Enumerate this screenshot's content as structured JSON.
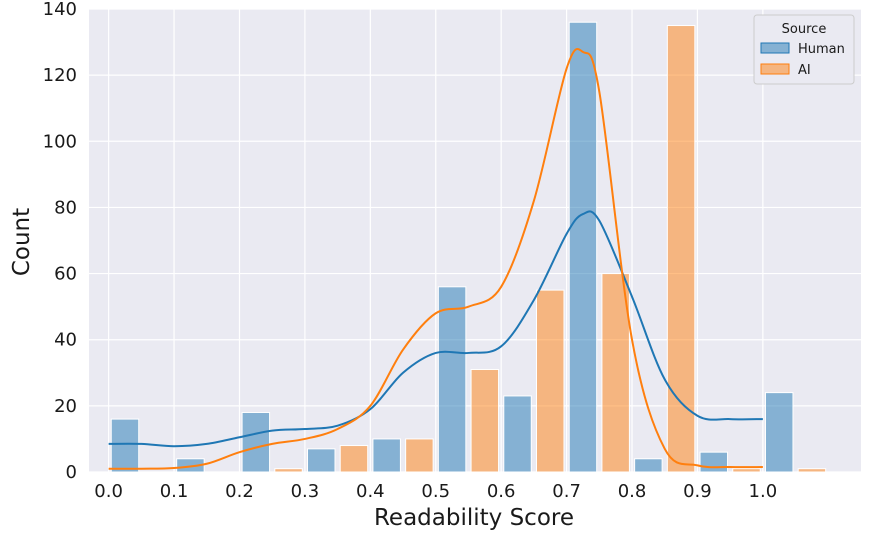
{
  "chart_data": {
    "type": "bar",
    "title": "",
    "xlabel": "Readability Score",
    "ylabel": "Count",
    "bins": [
      0.0,
      0.1,
      0.2,
      0.3,
      0.4,
      0.5,
      0.6,
      0.7,
      0.8,
      0.9,
      1.0
    ],
    "xlim": [
      -0.03,
      1.15
    ],
    "ylim": [
      0,
      140
    ],
    "xticks": [
      "0.0",
      "0.1",
      "0.2",
      "0.3",
      "0.4",
      "0.5",
      "0.6",
      "0.7",
      "0.8",
      "0.9",
      "1.0"
    ],
    "yticks": [
      "0",
      "20",
      "40",
      "60",
      "80",
      "100",
      "120",
      "140"
    ],
    "grid": true,
    "legend": {
      "title": "Source",
      "placement": "top-right",
      "entries": [
        "Human",
        "AI"
      ]
    },
    "series": [
      {
        "name": "Human",
        "color": "#1f77b4",
        "values": [
          16,
          4,
          18,
          7,
          10,
          56,
          23,
          136,
          4,
          6,
          24
        ],
        "kde_x": [
          0.0,
          0.05,
          0.1,
          0.15,
          0.2,
          0.25,
          0.3,
          0.35,
          0.4,
          0.45,
          0.5,
          0.55,
          0.6,
          0.65,
          0.7,
          0.725,
          0.75,
          0.8,
          0.85,
          0.9,
          0.95,
          1.0
        ],
        "kde_y": [
          8.5,
          8.5,
          7.8,
          8.5,
          10.5,
          12.5,
          13,
          14,
          19,
          30,
          36,
          36,
          38,
          52,
          72,
          78,
          76,
          53,
          28,
          17,
          16,
          16
        ]
      },
      {
        "name": "AI",
        "color": "#ff7f0e",
        "values": [
          0,
          0,
          1,
          8,
          10,
          31,
          55,
          60,
          135,
          1,
          1
        ],
        "kde_x": [
          0.0,
          0.05,
          0.1,
          0.15,
          0.2,
          0.25,
          0.3,
          0.35,
          0.4,
          0.45,
          0.5,
          0.55,
          0.6,
          0.65,
          0.7,
          0.725,
          0.75,
          0.8,
          0.85,
          0.9,
          0.95,
          1.0
        ],
        "kde_y": [
          1,
          1,
          1.2,
          2.5,
          6,
          8.5,
          10,
          13,
          20,
          37,
          48,
          50,
          56,
          82,
          122,
          127,
          115,
          40,
          7,
          2,
          1.5,
          1.5
        ]
      }
    ]
  }
}
